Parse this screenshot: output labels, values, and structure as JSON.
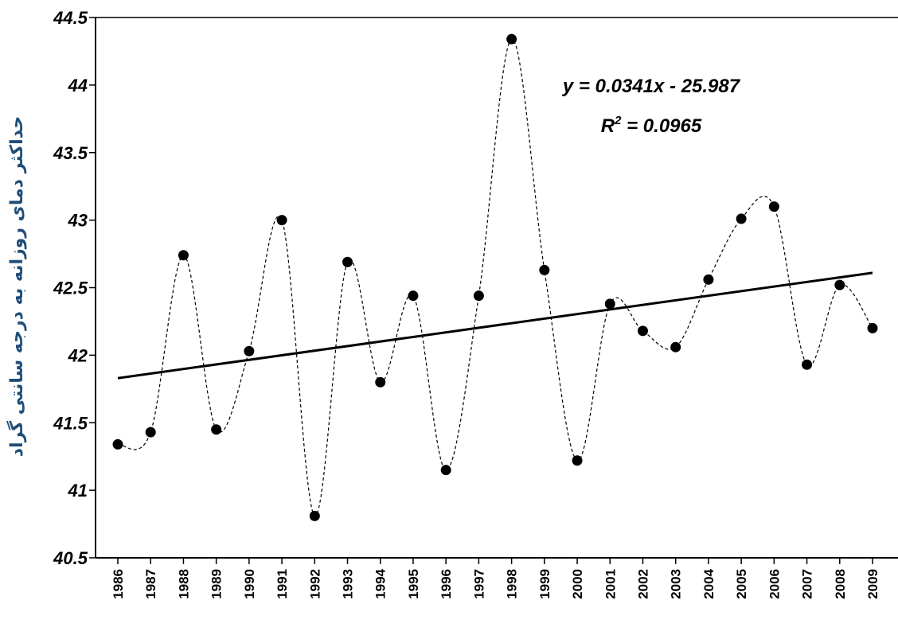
{
  "chart_data": {
    "type": "line",
    "title": "",
    "xlabel": "",
    "ylabel": "حداکثر دمای روزانه به درجه سانتی گراد",
    "ylim": [
      40.5,
      44.5
    ],
    "ytick_labels": [
      "40.5",
      "41",
      "41.5",
      "42",
      "42.5",
      "43",
      "43.5",
      "44",
      "44.5"
    ],
    "categories": [
      "1986",
      "1987",
      "1988",
      "1989",
      "1990",
      "1991",
      "1992",
      "1993",
      "1994",
      "1995",
      "1996",
      "1997",
      "1998",
      "1999",
      "2000",
      "2001",
      "2002",
      "2003",
      "2004",
      "2005",
      "2006",
      "2007",
      "2008",
      "2009"
    ],
    "series": [
      {
        "style": "dashed smooth line with filled black markers",
        "values": [
          41.34,
          41.43,
          42.74,
          41.45,
          42.03,
          43.0,
          40.81,
          42.69,
          41.8,
          42.44,
          41.15,
          42.44,
          44.34,
          42.63,
          41.22,
          42.38,
          42.18,
          42.06,
          42.56,
          43.01,
          43.1,
          41.93,
          42.52,
          42.2
        ]
      }
    ],
    "trendline": {
      "style": "solid black linear fit",
      "start": {
        "x": "1986",
        "y": 41.83
      },
      "end": {
        "x": "2009",
        "y": 42.61
      }
    },
    "annotations": {
      "equation": "y = 0.0341x - 25.987",
      "r2_prefix": "R",
      "r2_sup": "2",
      "r2_suffix": " = 0.0965"
    },
    "grid": false,
    "legend": "none"
  },
  "colors": {
    "ylabel": "#1f4e79",
    "series": "#000000",
    "trend": "#000000"
  }
}
